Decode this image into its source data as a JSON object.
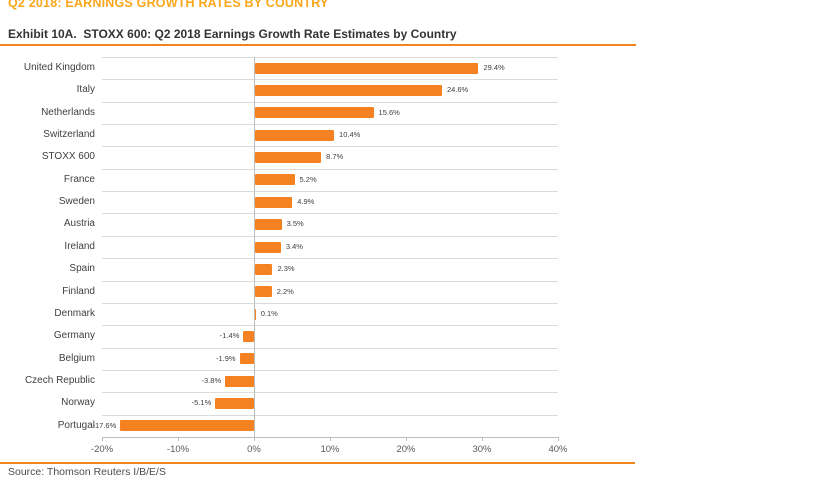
{
  "header": {
    "section_title": "Q2 2018: EARNINGS GROWTH RATES BY COUNTRY",
    "exhibit_title": "Exhibit 10A.  STOXX 600: Q2 2018 Earnings Growth Rate Estimates by Country"
  },
  "chart_data": {
    "type": "bar",
    "orientation": "horizontal",
    "title": "STOXX 600: Q2 2018 Earnings Growth Rate Estimates by Country",
    "categories": [
      "United Kingdom",
      "Italy",
      "Netherlands",
      "Switzerland",
      "STOXX 600",
      "France",
      "Sweden",
      "Austria",
      "Ireland",
      "Spain",
      "Finland",
      "Denmark",
      "Germany",
      "Belgium",
      "Czech Republic",
      "Norway",
      "Portugal"
    ],
    "values": [
      29.4,
      24.6,
      15.6,
      10.4,
      8.7,
      5.2,
      4.9,
      3.5,
      3.4,
      2.3,
      2.2,
      0.1,
      -1.4,
      -1.9,
      -3.8,
      -5.1,
      -17.6
    ],
    "value_labels": [
      "29.4%",
      "24.6%",
      "15.6%",
      "10.4%",
      "8.7%",
      "5.2%",
      "4.9%",
      "3.5%",
      "3.4%",
      "2.3%",
      "2.2%",
      "0.1%",
      "-1.4%",
      "-1.9%",
      "-3.8%",
      "-5.1%",
      "-17.6%"
    ],
    "xlabel": "",
    "ylabel": "",
    "xlim": [
      -20,
      40
    ],
    "x_tick_values": [
      -20,
      -10,
      0,
      10,
      20,
      30,
      40
    ],
    "x_ticks": [
      "-20%",
      "-10%",
      "0%",
      "10%",
      "20%",
      "30%",
      "40%"
    ],
    "grid": true,
    "legend": false,
    "bar_color": "#F58220"
  },
  "footer": {
    "source": "Source: Thomson Reuters I/B/E/S"
  },
  "colors": {
    "accent_orange": "#F58220",
    "title_orange": "#FAA61A",
    "rule_orange": "#F0861B",
    "grid_line": "#DBDBDB",
    "axis_line": "#BDBDBD",
    "text_dark": "#3F3F3F",
    "text_gray": "#595959"
  }
}
